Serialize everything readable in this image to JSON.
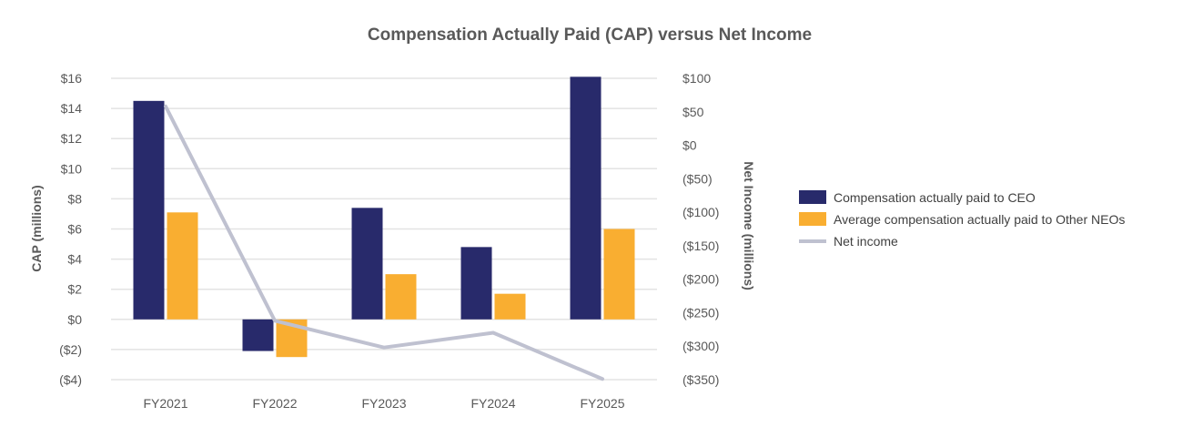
{
  "chart_data": {
    "type": "bar",
    "title": "Compensation Actually Paid (CAP) versus Net Income",
    "categories": [
      "FY2021",
      "FY2022",
      "FY2023",
      "FY2024",
      "FY2025"
    ],
    "series": [
      {
        "name": "Compensation actually paid to CEO",
        "type": "bar",
        "axis": "left",
        "color": "#282a6b",
        "values": [
          14.5,
          -2.1,
          7.4,
          4.8,
          16.1
        ]
      },
      {
        "name": "Average compensation actually paid to Other NEOs",
        "type": "bar",
        "axis": "left",
        "color": "#f9ae31",
        "values": [
          7.1,
          -2.5,
          3.0,
          1.7,
          6.0
        ]
      },
      {
        "name": "Net income",
        "type": "line",
        "axis": "right",
        "color": "#bfc1d0",
        "values": [
          58,
          -262,
          -302,
          -280,
          -349
        ]
      }
    ],
    "y_left": {
      "label": "CAP (millions)",
      "ylim": [
        -4,
        16
      ],
      "ticks": [
        -4,
        -2,
        0,
        2,
        4,
        6,
        8,
        10,
        12,
        14,
        16
      ],
      "tick_labels": [
        "($4)",
        "($2)",
        "$0",
        "$2",
        "$4",
        "$6",
        "$8",
        "$10",
        "$12",
        "$14",
        "$16"
      ]
    },
    "y_right": {
      "label": "Net Income (millions)",
      "ylim": [
        -350,
        100
      ],
      "ticks": [
        -350,
        -300,
        -250,
        -200,
        -150,
        -100,
        -50,
        0,
        50,
        100
      ],
      "tick_labels": [
        "($350)",
        "($300)",
        "($250)",
        "($200)",
        "($150)",
        "($100)",
        "($50)",
        "$0",
        "$50",
        "$100"
      ]
    },
    "grid": true,
    "legend_position": "right"
  }
}
